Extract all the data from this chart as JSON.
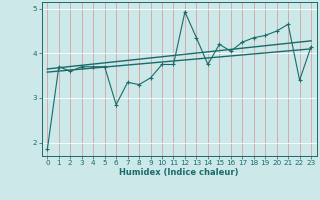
{
  "xlabel": "Humidex (Indice chaleur)",
  "ylabel": "",
  "background_color": "#cce8e8",
  "grid_color": "#e8c8c8",
  "line_color": "#1a6b6b",
  "xlim": [
    -0.5,
    23.5
  ],
  "ylim": [
    1.7,
    5.15
  ],
  "yticks": [
    2,
    3,
    4,
    5
  ],
  "xticks": [
    0,
    1,
    2,
    3,
    4,
    5,
    6,
    7,
    8,
    9,
    10,
    11,
    12,
    13,
    14,
    15,
    16,
    17,
    18,
    19,
    20,
    21,
    22,
    23
  ],
  "series1_x": [
    0,
    1,
    2,
    3,
    4,
    5,
    6,
    7,
    8,
    9,
    10,
    11,
    12,
    13,
    14,
    15,
    16,
    17,
    18,
    19,
    20,
    21,
    22,
    23
  ],
  "series1_y": [
    1.85,
    3.7,
    3.6,
    3.7,
    3.7,
    3.7,
    2.85,
    3.35,
    3.3,
    3.45,
    3.75,
    3.75,
    4.93,
    4.35,
    3.75,
    4.2,
    4.05,
    4.25,
    4.35,
    4.4,
    4.5,
    4.65,
    3.4,
    4.15
  ],
  "series2_x": [
    0,
    23
  ],
  "series2_y": [
    3.58,
    4.1
  ],
  "series3_x": [
    0,
    23
  ],
  "series3_y": [
    3.65,
    4.28
  ]
}
